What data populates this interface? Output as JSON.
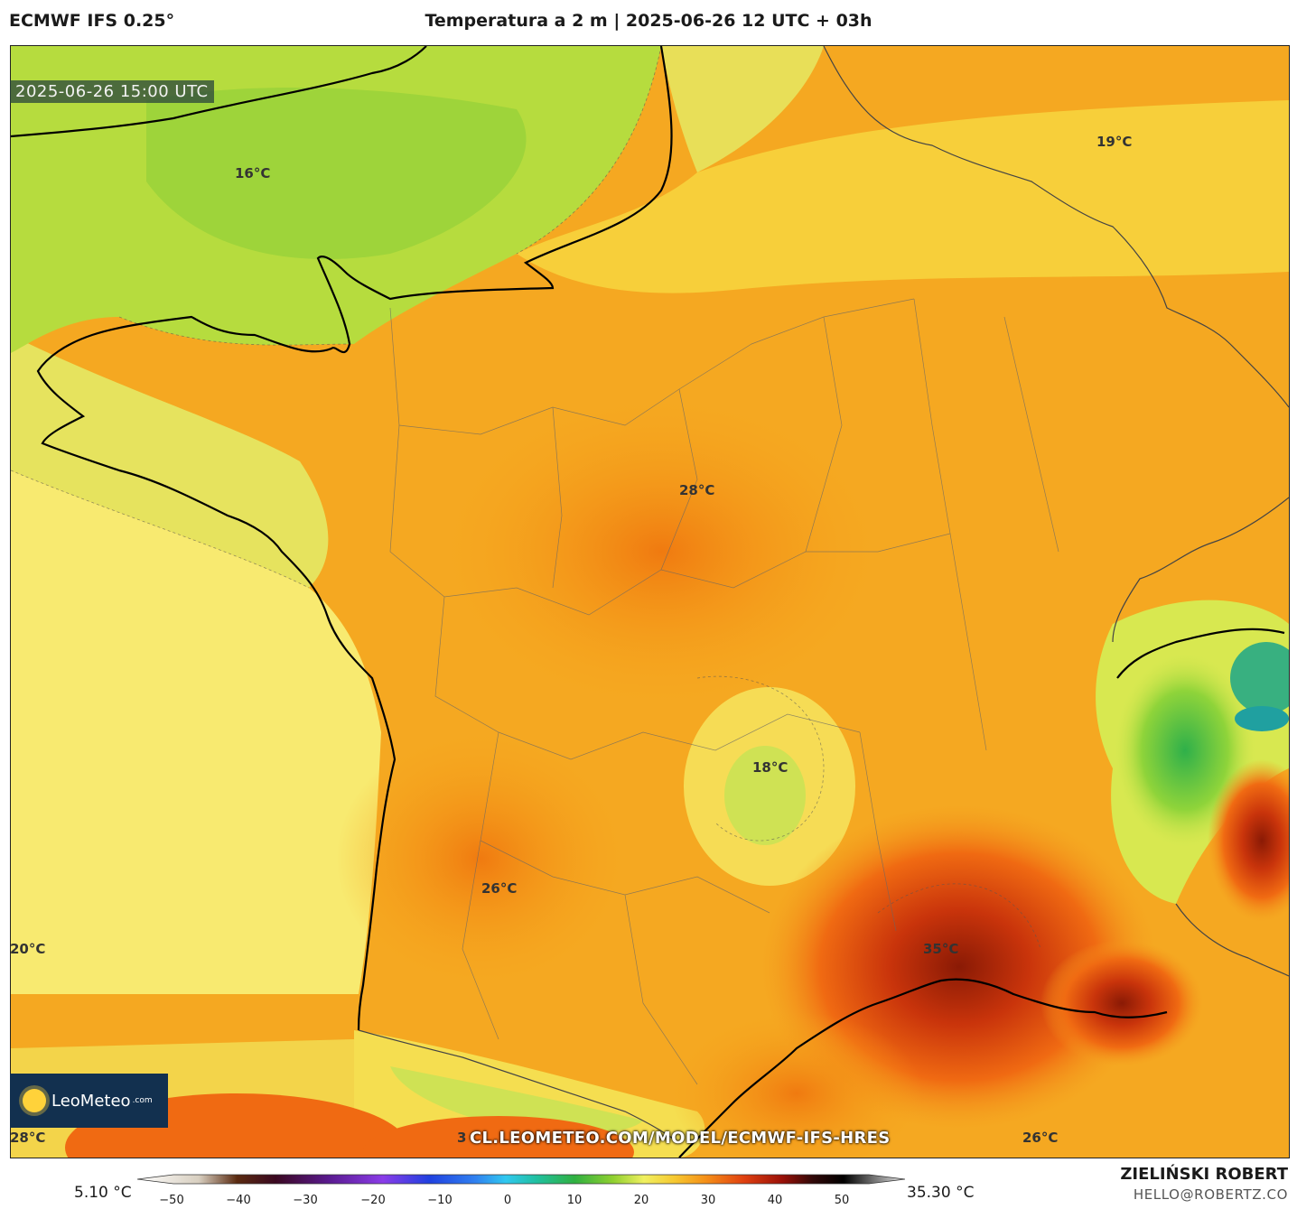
{
  "header": {
    "model": "ECMWF IFS 0.25°",
    "title": "Temperatura a 2 m | 2025-06-26 12 UTC + 03h"
  },
  "map": {
    "valid_time": "2025-06-26 15:00 UTC",
    "labels": [
      {
        "text": "16°C"
      },
      {
        "text": "19°C"
      },
      {
        "text": "28°C"
      },
      {
        "text": "18°C"
      },
      {
        "text": "26°C"
      },
      {
        "text": "20°C"
      },
      {
        "text": "35°C"
      },
      {
        "text": "28°C"
      },
      {
        "text": "26°C"
      },
      {
        "text": "3"
      }
    ],
    "url": "CL.LEOMETEO.COM/MODEL/ECMWF-IFS-HRES"
  },
  "logo": {
    "name": "LeoMeteo",
    "suffix": ".com"
  },
  "colorbar": {
    "min_label": "5.10 °C",
    "max_label": "35.30 °C",
    "ticks": [
      "−50",
      "−40",
      "−30",
      "−20",
      "−10",
      "0",
      "10",
      "20",
      "30",
      "40",
      "50"
    ]
  },
  "footer": {
    "author": "ZIELIŃSKI ROBERT",
    "email": "HELLO@ROBERTZ.CO"
  }
}
